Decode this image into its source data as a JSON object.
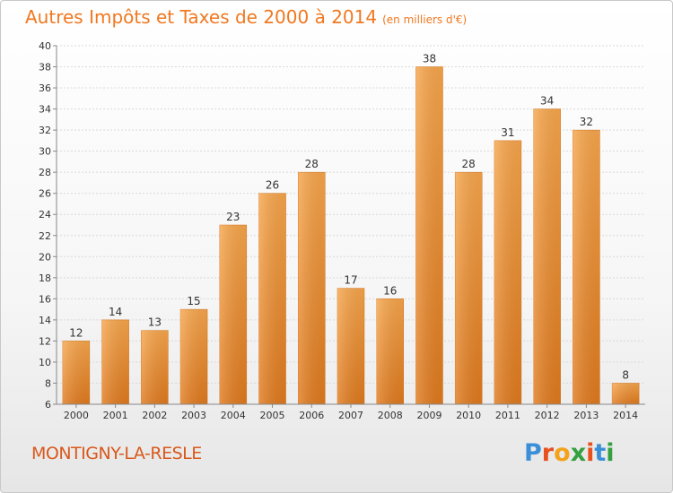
{
  "title": "Autres Impôts et Taxes de 2000 à 2014",
  "unit": "(en milliers d'€)",
  "commune": "MONTIGNY-LA-RESLE",
  "logo": "Proxiti",
  "colors": {
    "bar": "#f0902a",
    "bar_light": "#f7a74a",
    "bar_dark": "#d8701a",
    "title": "#f07820",
    "commune": "#d9581c"
  },
  "chart_data": {
    "type": "bar",
    "title": "Autres Impôts et Taxes de 2000 à 2014",
    "subtitle": "(en milliers d'€)",
    "categories": [
      "2000",
      "2001",
      "2002",
      "2003",
      "2004",
      "2005",
      "2006",
      "2007",
      "2008",
      "2009",
      "2010",
      "2011",
      "2012",
      "2013",
      "2014"
    ],
    "values": [
      12,
      14,
      13,
      15,
      23,
      26,
      28,
      17,
      16,
      38,
      28,
      31,
      34,
      32,
      8
    ],
    "ylim": [
      6,
      40
    ],
    "yticks": [
      6,
      8,
      10,
      12,
      14,
      16,
      18,
      20,
      22,
      24,
      26,
      28,
      30,
      32,
      34,
      36,
      38,
      40
    ],
    "grid": true
  }
}
